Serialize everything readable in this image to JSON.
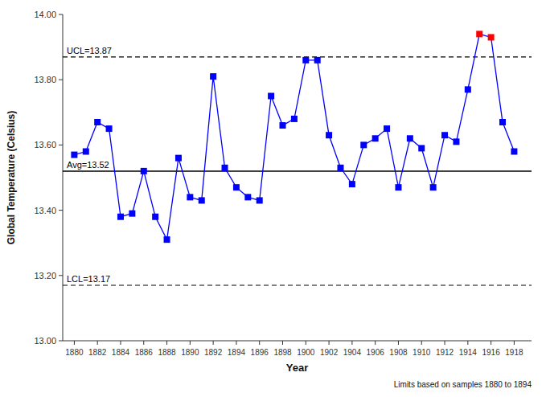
{
  "chart_data": {
    "type": "line",
    "xlabel": "Year",
    "ylabel": "Global Temperature (Celsius)",
    "x": [
      1880,
      1881,
      1882,
      1883,
      1884,
      1885,
      1886,
      1887,
      1888,
      1889,
      1890,
      1891,
      1892,
      1893,
      1894,
      1895,
      1896,
      1897,
      1898,
      1899,
      1900,
      1901,
      1902,
      1903,
      1904,
      1905,
      1906,
      1907,
      1908,
      1909,
      1910,
      1911,
      1912,
      1913,
      1914,
      1915,
      1916,
      1917,
      1918
    ],
    "series": [
      {
        "color": "#0000FF",
        "marker": "square",
        "values": [
          13.57,
          13.58,
          13.67,
          13.65,
          13.38,
          13.39,
          13.52,
          13.38,
          13.31,
          13.56,
          13.44,
          13.43,
          13.81,
          13.53,
          13.47,
          13.44,
          13.43,
          13.75,
          13.66,
          13.68,
          13.86,
          13.86,
          13.63,
          13.53,
          13.48,
          13.6,
          13.62,
          13.65,
          13.47,
          13.62,
          13.59,
          13.47,
          13.63,
          13.61,
          13.77,
          13.94,
          13.93,
          13.67,
          13.58
        ],
        "colors": [
          "#0000FF",
          "#0000FF",
          "#0000FF",
          "#0000FF",
          "#0000FF",
          "#0000FF",
          "#0000FF",
          "#0000FF",
          "#0000FF",
          "#0000FF",
          "#0000FF",
          "#0000FF",
          "#0000FF",
          "#0000FF",
          "#0000FF",
          "#0000FF",
          "#0000FF",
          "#0000FF",
          "#0000FF",
          "#0000FF",
          "#0000FF",
          "#0000FF",
          "#0000FF",
          "#0000FF",
          "#0000FF",
          "#0000FF",
          "#0000FF",
          "#0000FF",
          "#0000FF",
          "#0000FF",
          "#0000FF",
          "#0000FF",
          "#0000FF",
          "#0000FF",
          "#0000FF",
          "#FF0000",
          "#FF0000",
          "#0000FF",
          "#0000FF"
        ]
      }
    ],
    "annotations": [
      {
        "y": 13.52,
        "label": "Avg=13.52",
        "color": "#000000",
        "line_style": "solid"
      },
      {
        "y": 13.87,
        "label": "UCL=13.87",
        "color": "#000000",
        "line_style": "dashed"
      },
      {
        "y": 13.17,
        "label": "LCL=13.17",
        "color": "#000000",
        "line_style": "dashed"
      }
    ],
    "footnote": "Limits based on samples 1880 to 1894",
    "xlim": [
      1879.0,
      1919.5
    ],
    "xticks": [
      1880,
      1882,
      1884,
      1886,
      1888,
      1890,
      1892,
      1894,
      1896,
      1898,
      1900,
      1902,
      1904,
      1906,
      1908,
      1910,
      1912,
      1914,
      1916,
      1918
    ],
    "ylim": [
      13.0,
      14.0
    ],
    "yticks": [
      {
        "value": 13.0,
        "label": "13.00"
      },
      {
        "value": 13.2,
        "label": "13.20"
      },
      {
        "value": 13.4,
        "label": "13.40"
      },
      {
        "value": 13.6,
        "label": "13.60"
      },
      {
        "value": 13.8,
        "label": "13.80"
      },
      {
        "value": 14.0,
        "label": "14.00"
      }
    ],
    "grid": false
  }
}
